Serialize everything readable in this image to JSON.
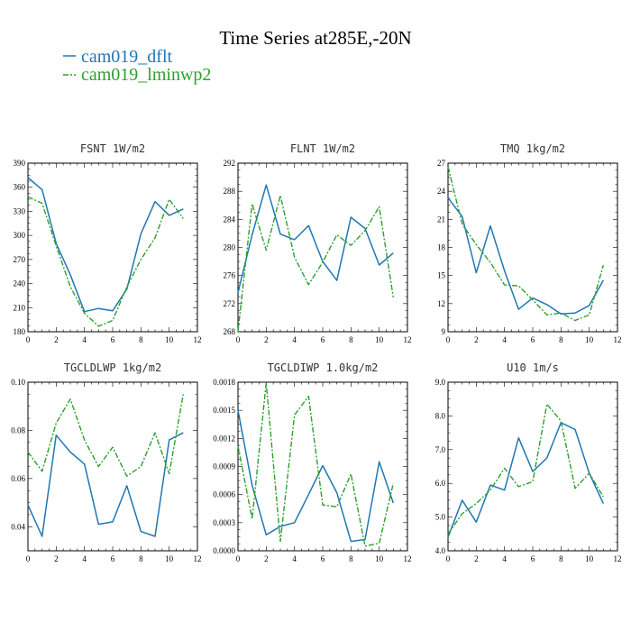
{
  "figure": {
    "title": "Time Series at285E,-20N",
    "legend": [
      {
        "label": "cam019_dflt",
        "color": "#1f77b4",
        "dash": "solid"
      },
      {
        "label": "cam019_lminwp2",
        "color": "#2ca02c",
        "dash": "dashdot"
      }
    ]
  },
  "chart_data": [
    {
      "type": "line",
      "title": "FSNT   1W/m2",
      "xlim": [
        0,
        12
      ],
      "xticks": [
        0,
        2,
        4,
        6,
        8,
        10,
        12
      ],
      "ylim": [
        180,
        390
      ],
      "yticks": [
        "180",
        "210",
        "240",
        "270",
        "300",
        "330",
        "360",
        "390"
      ],
      "x": [
        0,
        1,
        2,
        3,
        4,
        5,
        6,
        7,
        8,
        9,
        10,
        11
      ],
      "series": [
        {
          "name": "cam019_dflt",
          "values": [
            372,
            357,
            290,
            251,
            205,
            209,
            206,
            233,
            302,
            342,
            325,
            333
          ]
        },
        {
          "name": "cam019_lminwp2",
          "values": [
            348,
            340,
            287,
            236,
            203,
            187,
            194,
            236,
            270,
            297,
            345,
            321
          ]
        }
      ]
    },
    {
      "type": "line",
      "title": "FLNT   1W/m2",
      "xlim": [
        0,
        12
      ],
      "xticks": [
        0,
        2,
        4,
        6,
        8,
        10,
        12
      ],
      "ylim": [
        268,
        292
      ],
      "yticks": [
        "268",
        "272",
        "276",
        "280",
        "284",
        "288",
        "292"
      ],
      "x": [
        0,
        1,
        2,
        3,
        4,
        5,
        6,
        7,
        8,
        9,
        10,
        11
      ],
      "series": [
        {
          "name": "cam019_dflt",
          "values": [
            273.6,
            281.8,
            288.9,
            281.9,
            281.1,
            283.1,
            278.0,
            275.3,
            284.3,
            282.7,
            277.5,
            279.2
          ]
        },
        {
          "name": "cam019_lminwp2",
          "values": [
            268.0,
            286.2,
            279.6,
            287.4,
            278.6,
            274.7,
            277.9,
            281.8,
            280.3,
            282.4,
            285.8,
            272.9
          ]
        }
      ]
    },
    {
      "type": "line",
      "title": "TMQ   1kg/m2",
      "xlim": [
        0,
        12
      ],
      "xticks": [
        0,
        2,
        4,
        6,
        8,
        10,
        12
      ],
      "ylim": [
        9,
        27
      ],
      "yticks": [
        "9",
        "12",
        "15",
        "18",
        "21",
        "24",
        "27"
      ],
      "x": [
        0,
        1,
        2,
        3,
        4,
        5,
        6,
        7,
        8,
        9,
        10,
        11
      ],
      "series": [
        {
          "name": "cam019_dflt",
          "values": [
            23.3,
            21.3,
            15.3,
            20.3,
            15.5,
            11.4,
            12.6,
            11.9,
            10.9,
            11.0,
            11.8,
            14.5
          ]
        },
        {
          "name": "cam019_lminwp2",
          "values": [
            26.6,
            20.5,
            18.3,
            16.4,
            14.0,
            13.9,
            12.4,
            10.8,
            11.0,
            10.2,
            10.8,
            16.1
          ]
        }
      ]
    },
    {
      "type": "line",
      "title": "TGCLDLWP   1kg/m2",
      "xlim": [
        0,
        12
      ],
      "xticks": [
        0,
        2,
        4,
        6,
        8,
        10,
        12
      ],
      "ylim": [
        0.03,
        0.1
      ],
      "yticks": [
        "0.04",
        "0.06",
        "0.08",
        "0.10"
      ],
      "x": [
        0,
        1,
        2,
        3,
        4,
        5,
        6,
        7,
        8,
        9,
        10,
        11
      ],
      "series": [
        {
          "name": "cam019_dflt",
          "values": [
            0.049,
            0.036,
            0.078,
            0.071,
            0.066,
            0.041,
            0.042,
            0.057,
            0.038,
            0.036,
            0.076,
            0.079
          ]
        },
        {
          "name": "cam019_lminwp2",
          "values": [
            0.071,
            0.063,
            0.083,
            0.093,
            0.076,
            0.065,
            0.073,
            0.061,
            0.065,
            0.079,
            0.062,
            0.095
          ]
        }
      ]
    },
    {
      "type": "line",
      "title": "TGCLDIWP   1.0kg/m2",
      "xlim": [
        0,
        12
      ],
      "xticks": [
        0,
        2,
        4,
        6,
        8,
        10,
        12
      ],
      "ylim": [
        0,
        0.0018
      ],
      "yticks": [
        "0.0000",
        "0.0003",
        "0.0006",
        "0.0009",
        "0.0012",
        "0.0015",
        "0.0018"
      ],
      "x": [
        0,
        1,
        2,
        3,
        4,
        5,
        6,
        7,
        8,
        9,
        10,
        11
      ],
      "series": [
        {
          "name": "cam019_dflt",
          "values": [
            0.0015,
            0.0007,
            0.00017,
            0.00026,
            0.0003,
            0.0006,
            0.00091,
            0.00062,
            0.0001,
            0.00012,
            0.00095,
            0.00051
          ]
        },
        {
          "name": "cam019_lminwp2",
          "values": [
            0.00112,
            0.00034,
            0.00179,
            0.0001,
            0.00145,
            0.00165,
            0.00049,
            0.00047,
            0.00082,
            5e-05,
            8e-05,
            0.00072
          ]
        }
      ]
    },
    {
      "type": "line",
      "title": "U10   1m/s",
      "xlim": [
        0,
        12
      ],
      "xticks": [
        0,
        2,
        4,
        6,
        8,
        10,
        12
      ],
      "ylim": [
        4.0,
        9.0
      ],
      "yticks": [
        "4.0",
        "5.0",
        "6.0",
        "7.0",
        "8.0",
        "9.0"
      ],
      "x": [
        0,
        1,
        2,
        3,
        4,
        5,
        6,
        7,
        8,
        9,
        10,
        11
      ],
      "series": [
        {
          "name": "cam019_dflt",
          "values": [
            4.4,
            5.5,
            4.85,
            5.95,
            5.8,
            7.35,
            6.35,
            6.75,
            7.8,
            7.6,
            6.3,
            5.4
          ]
        },
        {
          "name": "cam019_lminwp2",
          "values": [
            4.5,
            5.1,
            5.4,
            5.8,
            6.45,
            5.9,
            6.05,
            8.35,
            7.85,
            5.85,
            6.3,
            5.6
          ]
        }
      ]
    }
  ]
}
